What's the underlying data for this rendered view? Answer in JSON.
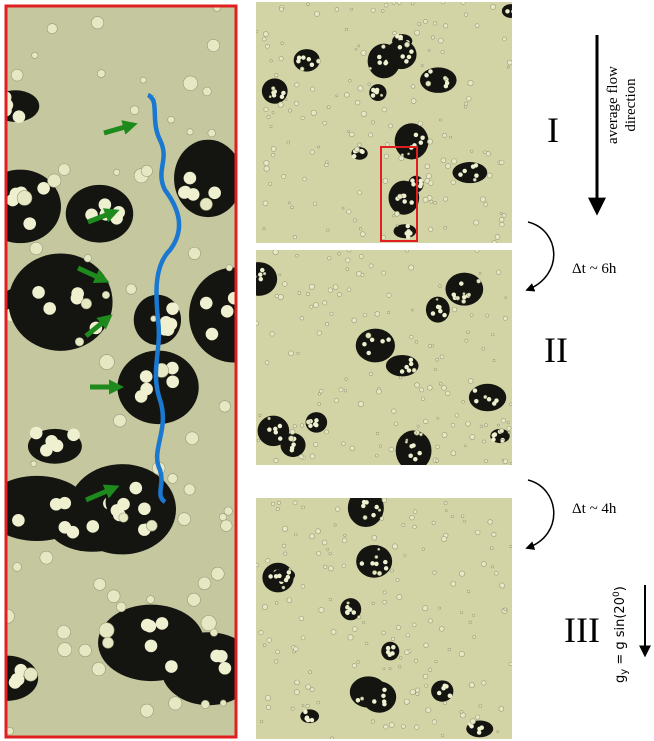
{
  "labels": {
    "stage_1": "I",
    "stage_2": "II",
    "stage_3": "III"
  },
  "flow": {
    "line1": "average flow",
    "line2": "direction"
  },
  "intervals": {
    "first": "Δt ~ 6h",
    "second": "Δt ~ 4h"
  },
  "gravity": {
    "base": "g",
    "subscript": "y",
    "expression": " = g sin(20",
    "superscript": "0",
    "close": ")"
  }
}
